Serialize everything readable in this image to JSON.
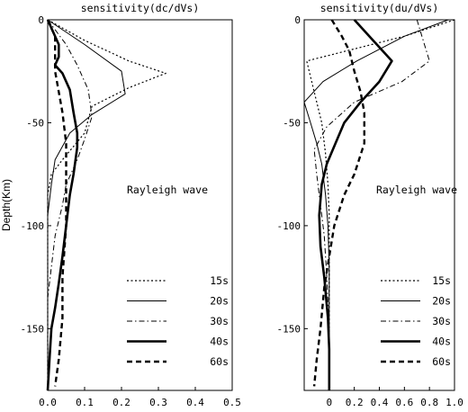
{
  "chart_data": [
    {
      "type": "line",
      "title": "sensitivity(dc/dVs)",
      "ylabel": "Depth(Km)",
      "xlabel": "",
      "xlim": [
        0,
        0.5
      ],
      "ylim": [
        -180,
        0
      ],
      "xticks": [
        "0.0",
        "0.1",
        "0.2",
        "0.3",
        "0.4",
        "0.5"
      ],
      "xtick_values": [
        0,
        0.1,
        0.2,
        0.3,
        0.4,
        0.5
      ],
      "yticks": [
        "0",
        "-50",
        "-100",
        "-150"
      ],
      "ytick_values": [
        0,
        -50,
        -100,
        -150
      ],
      "annotation": "Rayleigh wave",
      "legend_position": "lower-right",
      "series": [
        {
          "name": "15s",
          "style": "dotted",
          "points": [
            [
              0,
              0
            ],
            [
              0.1,
              -10
            ],
            [
              0.22,
              -20
            ],
            [
              0.32,
              -26
            ],
            [
              0.22,
              -33
            ],
            [
              0.12,
              -42
            ],
            [
              0.1,
              -55
            ],
            [
              0.04,
              -68
            ],
            [
              0.01,
              -75
            ],
            [
              0,
              -85
            ],
            [
              0,
              -180
            ]
          ]
        },
        {
          "name": "20s",
          "style": "solid",
          "points": [
            [
              0,
              0
            ],
            [
              0.1,
              -12
            ],
            [
              0.2,
              -25
            ],
            [
              0.21,
              -36
            ],
            [
              0.12,
              -46
            ],
            [
              0.06,
              -55
            ],
            [
              0.02,
              -68
            ],
            [
              0.01,
              -80
            ],
            [
              0,
              -95
            ],
            [
              0,
              -180
            ]
          ]
        },
        {
          "name": "30s",
          "style": "dashdot",
          "points": [
            [
              0,
              0
            ],
            [
              0.05,
              -12
            ],
            [
              0.08,
              -22
            ],
            [
              0.11,
              -34
            ],
            [
              0.12,
              -47
            ],
            [
              0.1,
              -58
            ],
            [
              0.08,
              -68
            ],
            [
              0.05,
              -80
            ],
            [
              0.04,
              -90
            ],
            [
              0.02,
              -105
            ],
            [
              0.01,
              -120
            ],
            [
              0,
              -135
            ],
            [
              0,
              -180
            ]
          ]
        },
        {
          "name": "40s",
          "style": "thick",
          "points": [
            [
              0,
              0
            ],
            [
              0.03,
              -12
            ],
            [
              0.03,
              -18
            ],
            [
              0.02,
              -22
            ],
            [
              0.04,
              -26
            ],
            [
              0.06,
              -34
            ],
            [
              0.07,
              -45
            ],
            [
              0.08,
              -55
            ],
            [
              0.08,
              -62
            ],
            [
              0.07,
              -75
            ],
            [
              0.06,
              -85
            ],
            [
              0.05,
              -100
            ],
            [
              0.04,
              -115
            ],
            [
              0.03,
              -128
            ],
            [
              0.02,
              -140
            ],
            [
              0.01,
              -150
            ],
            [
              0.005,
              -165
            ],
            [
              0,
              -180
            ]
          ]
        },
        {
          "name": "60s",
          "style": "dashed",
          "points": [
            [
              0,
              0
            ],
            [
              0.02,
              -8
            ],
            [
              0.02,
              -16
            ],
            [
              0.02,
              -25
            ],
            [
              0.03,
              -35
            ],
            [
              0.04,
              -45
            ],
            [
              0.05,
              -60
            ],
            [
              0.05,
              -80
            ],
            [
              0.05,
              -100
            ],
            [
              0.04,
              -125
            ],
            [
              0.04,
              -145
            ],
            [
              0.03,
              -165
            ],
            [
              0.02,
              -178
            ]
          ]
        }
      ]
    },
    {
      "type": "line",
      "title": "sensitivity(du/dVs)",
      "ylabel": "",
      "xlabel": "",
      "xlim": [
        -0.2,
        1.0
      ],
      "ylim": [
        -180,
        0
      ],
      "xticks": [
        "0",
        "0.2",
        "0.4",
        "0.6",
        "0.8",
        "1.0"
      ],
      "xtick_values": [
        0,
        0.2,
        0.4,
        0.6,
        0.8,
        1.0
      ],
      "yticks": [
        "0",
        "-50",
        "-100",
        "-150"
      ],
      "ytick_values": [
        0,
        -50,
        -100,
        -150
      ],
      "annotation": "Rayleigh wave",
      "legend_position": "lower-right",
      "series": [
        {
          "name": "15s",
          "style": "dotted",
          "points": [
            [
              1.0,
              0
            ],
            [
              0.6,
              -8
            ],
            [
              -0.18,
              -20
            ],
            [
              -0.12,
              -35
            ],
            [
              -0.06,
              -50
            ],
            [
              -0.03,
              -65
            ],
            [
              -0.01,
              -80
            ],
            [
              0,
              -95
            ],
            [
              0,
              -180
            ]
          ]
        },
        {
          "name": "20s",
          "style": "solid",
          "points": [
            [
              0.95,
              0
            ],
            [
              0.6,
              -8
            ],
            [
              0.22,
              -20
            ],
            [
              -0.05,
              -30
            ],
            [
              -0.2,
              -40
            ],
            [
              -0.15,
              -50
            ],
            [
              -0.1,
              -60
            ],
            [
              -0.06,
              -70
            ],
            [
              -0.03,
              -85
            ],
            [
              -0.01,
              -100
            ],
            [
              0,
              -120
            ],
            [
              0,
              -180
            ]
          ]
        },
        {
          "name": "30s",
          "style": "dashdot",
          "points": [
            [
              0.7,
              0
            ],
            [
              0.75,
              -10
            ],
            [
              0.8,
              -20
            ],
            [
              0.58,
              -30
            ],
            [
              0.2,
              -40
            ],
            [
              -0.02,
              -52
            ],
            [
              -0.12,
              -63
            ],
            [
              -0.1,
              -75
            ],
            [
              -0.07,
              -90
            ],
            [
              -0.04,
              -105
            ],
            [
              -0.02,
              -125
            ],
            [
              0,
              -150
            ],
            [
              0,
              -180
            ]
          ]
        },
        {
          "name": "40s",
          "style": "thick",
          "points": [
            [
              0.2,
              0
            ],
            [
              0.35,
              -10
            ],
            [
              0.5,
              -20
            ],
            [
              0.4,
              -30
            ],
            [
              0.25,
              -40
            ],
            [
              0.12,
              -50
            ],
            [
              0.05,
              -60
            ],
            [
              -0.02,
              -70
            ],
            [
              -0.06,
              -80
            ],
            [
              -0.08,
              -95
            ],
            [
              -0.07,
              -110
            ],
            [
              -0.04,
              -125
            ],
            [
              -0.01,
              -145
            ],
            [
              0,
              -160
            ],
            [
              0,
              -180
            ]
          ]
        },
        {
          "name": "60s",
          "style": "dashed",
          "points": [
            [
              0.02,
              0
            ],
            [
              0.1,
              -8
            ],
            [
              0.16,
              -15
            ],
            [
              0.2,
              -25
            ],
            [
              0.25,
              -35
            ],
            [
              0.28,
              -45
            ],
            [
              0.28,
              -60
            ],
            [
              0.2,
              -75
            ],
            [
              0.12,
              -85
            ],
            [
              0.04,
              -100
            ],
            [
              0,
              -115
            ],
            [
              -0.04,
              -130
            ],
            [
              -0.07,
              -150
            ],
            [
              -0.1,
              -165
            ],
            [
              -0.12,
              -178
            ]
          ]
        }
      ]
    }
  ]
}
